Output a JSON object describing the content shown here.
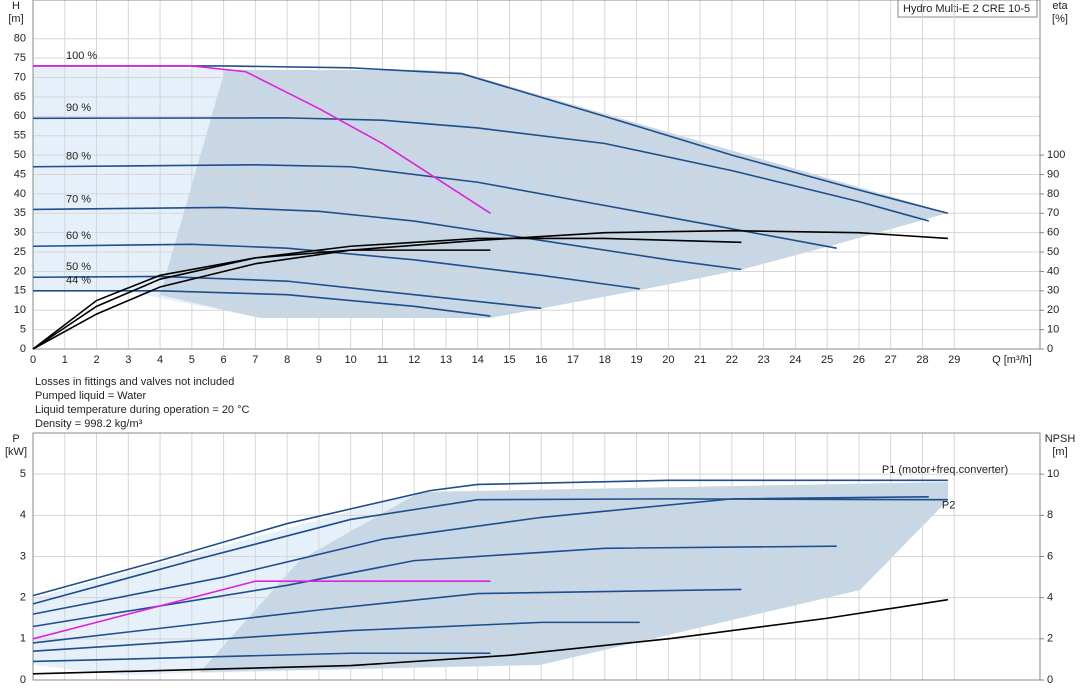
{
  "chart_data": [
    {
      "type": "line",
      "title": "Hydro Multi-E 2 CRE 10-5",
      "ylabel": [
        "H",
        "[m]"
      ],
      "y2label": [
        "eta",
        "[%]"
      ],
      "xlabel": "Q [m³/h]",
      "xlim": [
        0,
        31.7
      ],
      "xticks": [
        0,
        1,
        2,
        3,
        4,
        5,
        6,
        7,
        8,
        9,
        10,
        11,
        12,
        13,
        14,
        15,
        16,
        17,
        18,
        19,
        20,
        21,
        22,
        23,
        24,
        25,
        26,
        27,
        28,
        29
      ],
      "ylim": [
        0,
        90
      ],
      "yticks": [
        0,
        5,
        10,
        15,
        20,
        25,
        30,
        35,
        40,
        45,
        50,
        55,
        60,
        65,
        70,
        75,
        80
      ],
      "y2lim": [
        0,
        180
      ],
      "y2ticks": [
        0,
        10,
        20,
        30,
        40,
        50,
        60,
        70,
        80,
        90,
        100
      ],
      "grid": true,
      "series": [
        {
          "name": "100 %",
          "color": "#1f4e8c",
          "x": [
            0,
            6,
            10,
            13.5,
            18,
            22,
            26,
            28.8
          ],
          "values": [
            73,
            73,
            72.5,
            71,
            60,
            50,
            41,
            35
          ]
        },
        {
          "name": "90 %",
          "color": "#1f4e8c",
          "x": [
            0,
            8,
            11,
            14,
            18,
            22,
            26,
            28.2
          ],
          "values": [
            59.5,
            59.6,
            59,
            57,
            53,
            46,
            38,
            33
          ]
        },
        {
          "name": "80 %",
          "color": "#1f4e8c",
          "x": [
            0,
            7,
            10,
            14,
            18,
            22,
            25.3
          ],
          "values": [
            47,
            47.5,
            47,
            43,
            37,
            31,
            26
          ]
        },
        {
          "name": "70 %",
          "color": "#1f4e8c",
          "x": [
            0,
            6,
            9,
            12,
            16,
            20,
            22.3
          ],
          "values": [
            36,
            36.5,
            35.5,
            33,
            28,
            23,
            20.5
          ]
        },
        {
          "name": "60 %",
          "color": "#1f4e8c",
          "x": [
            0,
            5,
            8,
            12,
            16,
            19.1
          ],
          "values": [
            26.5,
            27,
            26,
            23,
            19,
            15.5
          ]
        },
        {
          "name": "50 %",
          "color": "#1f4e8c",
          "x": [
            0,
            4,
            8,
            12,
            16
          ],
          "values": [
            18.5,
            18.7,
            17.5,
            14,
            10.5
          ]
        },
        {
          "name": "44 %",
          "color": "#1f4e8c",
          "x": [
            0,
            4,
            8,
            12,
            14.4
          ],
          "values": [
            15,
            15,
            14,
            11,
            8.5
          ]
        },
        {
          "color": "#e020e0",
          "x": [
            0,
            5,
            6.7,
            9,
            11,
            14.4
          ],
          "values": [
            73,
            73,
            71.5,
            62,
            53,
            35
          ]
        },
        {
          "color": "#000000",
          "axis": "y2",
          "x": [
            0,
            2,
            4,
            7,
            10,
            14,
            18,
            22,
            26,
            28.8
          ],
          "values": [
            0,
            18,
            32,
            44,
            51,
            56,
            60,
            61,
            60,
            57
          ]
        },
        {
          "color": "#000000",
          "axis": "y2",
          "x": [
            0,
            2,
            4,
            7,
            10,
            14,
            18,
            22.3
          ],
          "values": [
            0,
            22,
            36,
            47,
            53,
            57,
            57,
            55
          ]
        },
        {
          "color": "#000000",
          "axis": "y2",
          "x": [
            0,
            2,
            4,
            7,
            10,
            14.4
          ],
          "values": [
            0,
            25,
            38,
            47,
            51,
            51
          ]
        }
      ],
      "notes": [
        "Losses in fittings and valves not included",
        "Pumped liquid = Water",
        "Liquid temperature during operation = 20 °C",
        "Density = 998.2 kg/m³"
      ]
    },
    {
      "type": "line",
      "ylabel": [
        "P",
        "[kW]"
      ],
      "y2label": [
        "NPSH",
        "[m]"
      ],
      "xlim": [
        0,
        31.7
      ],
      "xticks": [
        0,
        1,
        2,
        3,
        4,
        5,
        6,
        7,
        8,
        9,
        10,
        11,
        12,
        13,
        14,
        15,
        16,
        17,
        18,
        19,
        20,
        21,
        22,
        23,
        24,
        25,
        26,
        27,
        28,
        29
      ],
      "ylim": [
        0,
        6
      ],
      "yticks": [
        0,
        1,
        2,
        3,
        4,
        5
      ],
      "y2lim": [
        0,
        12
      ],
      "y2ticks": [
        0,
        2,
        4,
        6,
        8,
        10
      ],
      "grid": true,
      "series": [
        {
          "name": "P1 (motor+freq.converter)",
          "color": "#1f4e8c",
          "x": [
            0,
            4,
            8,
            12.5,
            14,
            20,
            28.8
          ],
          "values": [
            2.05,
            2.9,
            3.8,
            4.6,
            4.75,
            4.85,
            4.85
          ]
        },
        {
          "name": "P2",
          "color": "#1f4e8c",
          "x": [
            0,
            5,
            10,
            14,
            20,
            28.8
          ],
          "values": [
            1.85,
            2.9,
            3.9,
            4.38,
            4.4,
            4.38
          ]
        },
        {
          "color": "#1f4e8c",
          "x": [
            0,
            6,
            11,
            16,
            22,
            28.2
          ],
          "values": [
            1.6,
            2.5,
            3.42,
            3.95,
            4.4,
            4.45
          ]
        },
        {
          "color": "#1f4e8c",
          "x": [
            0,
            8,
            12,
            18,
            25.3
          ],
          "values": [
            1.3,
            2.3,
            2.9,
            3.2,
            3.25
          ]
        },
        {
          "color": "#1f4e8c",
          "x": [
            0,
            9,
            14,
            22.3
          ],
          "values": [
            0.9,
            1.7,
            2.1,
            2.2
          ]
        },
        {
          "color": "#1f4e8c",
          "x": [
            0,
            10,
            16,
            19.1
          ],
          "values": [
            0.7,
            1.2,
            1.4,
            1.4
          ]
        },
        {
          "color": "#1f4e8c",
          "x": [
            0,
            10,
            14.4
          ],
          "values": [
            0.45,
            0.65,
            0.65
          ]
        },
        {
          "color": "#e020e0",
          "x": [
            0,
            7,
            14.4
          ],
          "values": [
            1,
            2.4,
            2.4
          ]
        },
        {
          "color": "#000000",
          "axis": "y2",
          "x": [
            0,
            5,
            10,
            15,
            20,
            25,
            28.8
          ],
          "values": [
            0.3,
            0.5,
            0.7,
            1.2,
            2,
            3,
            3.9
          ]
        }
      ]
    }
  ]
}
